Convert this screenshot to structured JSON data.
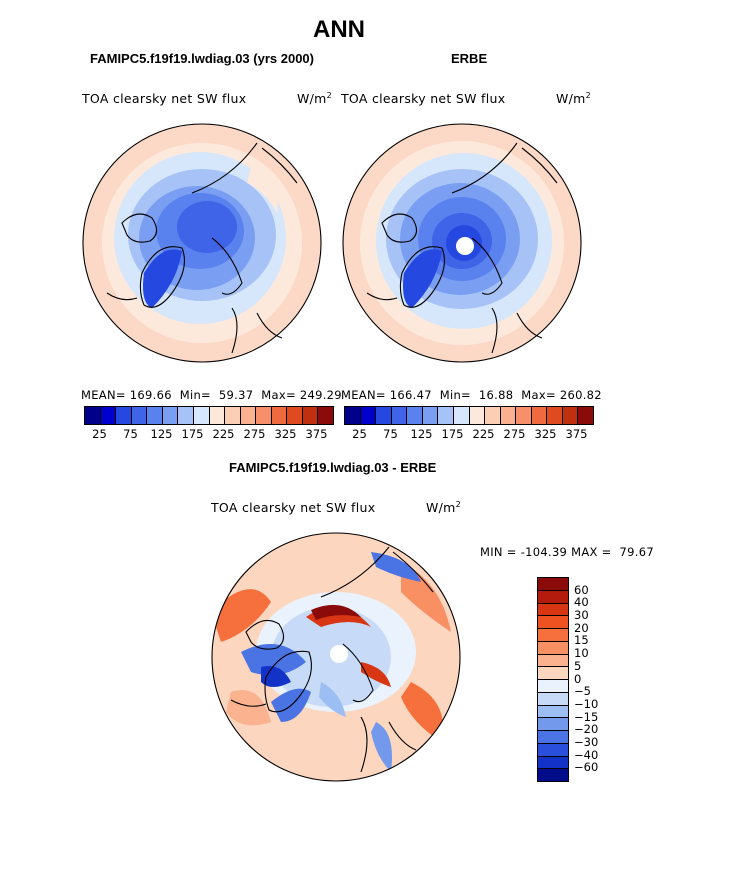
{
  "season": "ANN",
  "panels": [
    {
      "case_title": "FAMIPC5.f19f19.lwdiag.03 (yrs 2000)",
      "variable": "TOA clearsky net SW flux",
      "units": "W/m",
      "units_exp": "2",
      "stats": {
        "mean_label": "MEAN=",
        "mean": "169.66",
        "min_label": "Min=",
        "min": "59.37",
        "max_label": "Max=",
        "max": "249.29"
      }
    },
    {
      "case_title": "ERBE",
      "variable": "TOA clearsky net SW flux",
      "units": "W/m",
      "units_exp": "2",
      "stats": {
        "mean_label": "MEAN=",
        "mean": "166.47",
        "min_label": "Min=",
        "min": "16.88",
        "max_label": "Max=",
        "max": "260.82"
      }
    }
  ],
  "colorbar_top": {
    "colors": [
      "#00008b",
      "#0000cd",
      "#2549e0",
      "#3f64e8",
      "#5a82ee",
      "#7a9ef2",
      "#a6c2f6",
      "#d6e6fb",
      "#fde9dc",
      "#fbcfb4",
      "#f9b190",
      "#f68f6a",
      "#f06a40",
      "#e04a20",
      "#c0300f",
      "#8b0a0a"
    ],
    "labels": [
      "25",
      "75",
      "125",
      "175",
      "225",
      "275",
      "325",
      "375"
    ]
  },
  "diff": {
    "title": "FAMIPC5.f19f19.lwdiag.03 - ERBE",
    "variable": "TOA clearsky net SW flux",
    "units": "W/m",
    "units_exp": "2",
    "min_label": "MIN =",
    "min": "-104.39",
    "max_label": "MAX =",
    "max": "79.67",
    "colorbar": {
      "colors": [
        "#8b0a0a",
        "#b51b0c",
        "#d83512",
        "#ee5220",
        "#f5703c",
        "#f89064",
        "#fab28f",
        "#fcd6bf",
        "#eaf3fd",
        "#c7dbf8",
        "#9dbef3",
        "#7399ec",
        "#4a73e4",
        "#2a4fdc",
        "#1232c8",
        "#000d8b"
      ],
      "labels": [
        "60",
        "40",
        "30",
        "20",
        "15",
        "10",
        "5",
        "0",
        "−5",
        "−10",
        "−15",
        "−20",
        "−30",
        "−40",
        "−60"
      ]
    }
  }
}
